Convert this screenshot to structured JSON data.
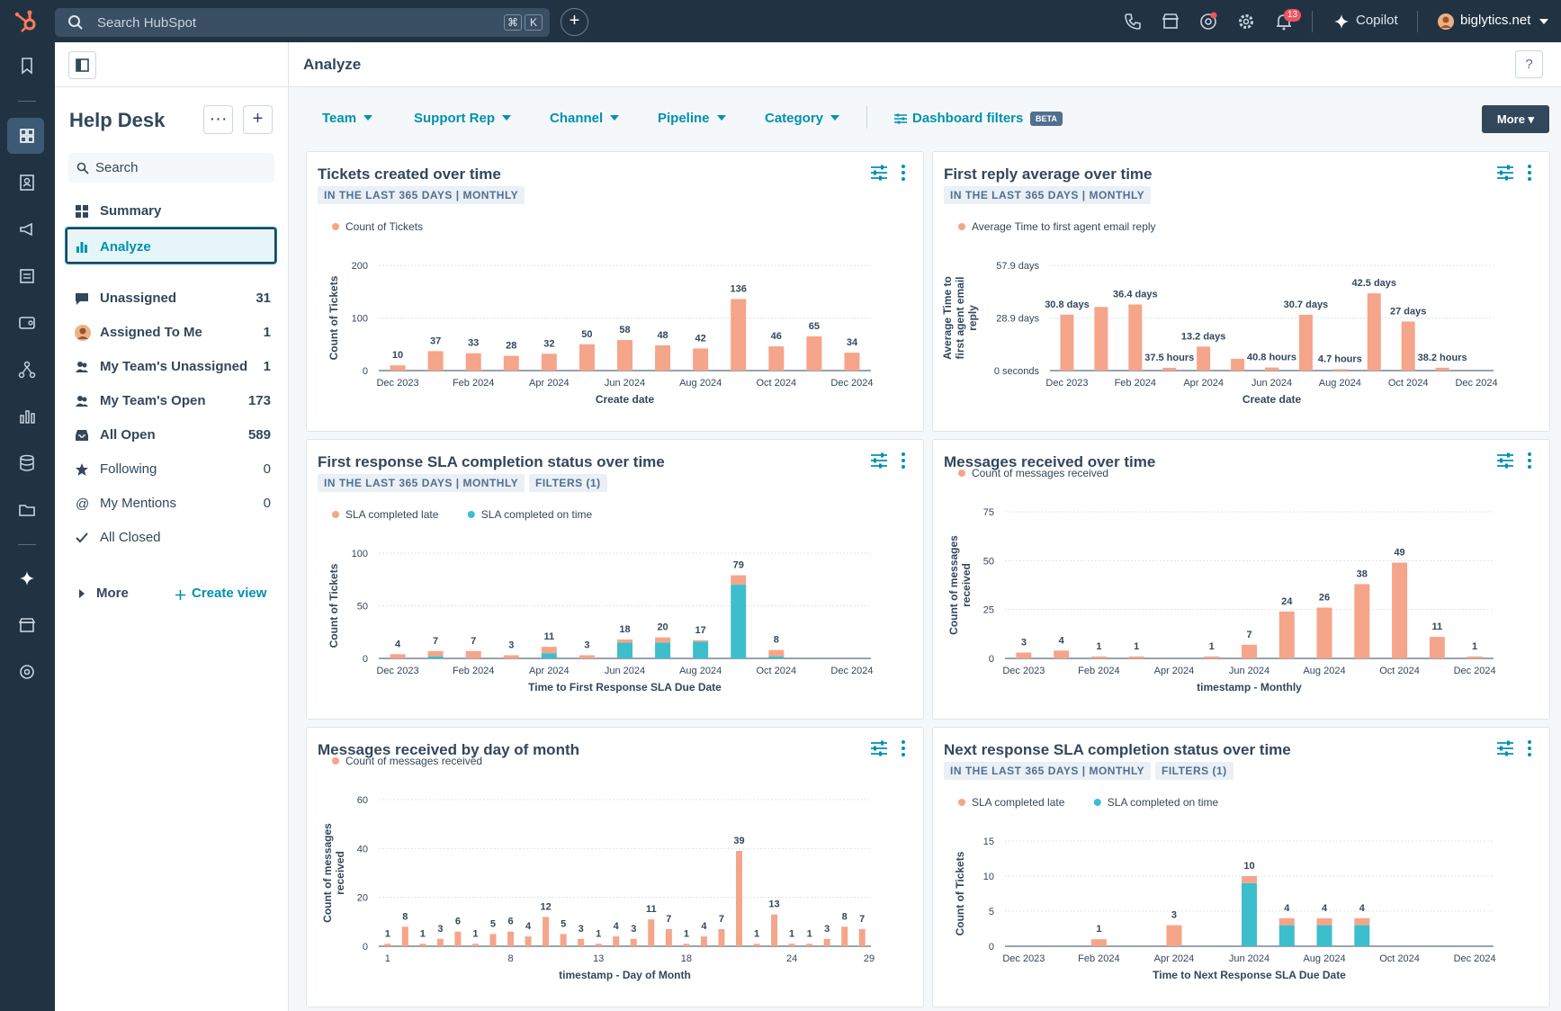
{
  "topbar": {
    "search_placeholder": "Search HubSpot",
    "kbd1": "⌘",
    "kbd2": "K",
    "add_label": "+",
    "notif_count": "13",
    "copilot_label": "Copilot",
    "account_label": "biglytics.net"
  },
  "header": {
    "title": "Analyze",
    "help": "?"
  },
  "sidebar": {
    "title": "Help Desk",
    "more_btn": "···",
    "add_btn": "+",
    "search_label": "Search",
    "items": [
      {
        "label": "Summary",
        "count": ""
      },
      {
        "label": "Analyze",
        "count": ""
      },
      {
        "label": "Unassigned",
        "count": "31"
      },
      {
        "label": "Assigned To Me",
        "count": "1"
      },
      {
        "label": "My Team's Unassigned",
        "count": "1"
      },
      {
        "label": "My Team's Open",
        "count": "173"
      },
      {
        "label": "All Open",
        "count": "589"
      },
      {
        "label": "Following",
        "count": "0"
      },
      {
        "label": "My Mentions",
        "count": "0"
      },
      {
        "label": "All Closed",
        "count": ""
      }
    ],
    "more_label": "More",
    "create_view": "Create view"
  },
  "filters": {
    "items": [
      "Team",
      "Support Rep",
      "Channel",
      "Pipeline",
      "Category"
    ],
    "dashboard_filters": "Dashboard filters",
    "beta": "BETA",
    "more": "More ▾"
  },
  "chart_data": [
    {
      "type": "bar",
      "title": "Tickets created over time",
      "tags": [
        "IN THE LAST 365 DAYS | MONTHLY"
      ],
      "legend": [
        "Count of Tickets"
      ],
      "xlabel": "Create date",
      "ylabel": "Count of Tickets",
      "ylim": [
        0,
        200
      ],
      "yticks": [
        "0",
        "100",
        "200"
      ],
      "xticks": [
        "Dec 2023",
        "Feb 2024",
        "Apr 2024",
        "Jun 2024",
        "Aug 2024",
        "Oct 2024",
        "Dec 2024"
      ],
      "categories": [
        "Dec 2023",
        "Jan 2024",
        "Feb 2024",
        "Mar 2024",
        "Apr 2024",
        "May 2024",
        "Jun 2024",
        "Jul 2024",
        "Aug 2024",
        "Sep 2024",
        "Oct 2024",
        "Nov 2024",
        "Dec 2024"
      ],
      "series": [
        {
          "values": [
            10,
            37,
            33,
            28,
            32,
            50,
            58,
            48,
            42,
            136,
            46,
            65,
            34
          ]
        }
      ],
      "labels": [
        "10",
        "37",
        "33",
        "28",
        "32",
        "50",
        "58",
        "48",
        "42",
        "136",
        "46",
        "65",
        "34"
      ]
    },
    {
      "type": "bar",
      "title": "First reply average over time",
      "tags": [
        "IN THE LAST 365 DAYS | MONTHLY"
      ],
      "legend": [
        "Average Time to first agent email reply"
      ],
      "xlabel": "Create date",
      "ylabel": "Average Time to first agent email reply",
      "ylim": [
        0,
        57.9
      ],
      "yticks": [
        "0 seconds",
        "28.9 days",
        "57.9 days"
      ],
      "xticks": [
        "Dec 2023",
        "Feb 2024",
        "Apr 2024",
        "Jun 2024",
        "Aug 2024",
        "Oct 2024",
        "Dec 2024"
      ],
      "categories": [
        "Dec 2023",
        "Jan 2024",
        "Feb 2024",
        "Mar 2024",
        "Apr 2024",
        "May 2024",
        "Jun 2024",
        "Jul 2024",
        "Aug 2024",
        "Sep 2024",
        "Oct 2024",
        "Nov 2024",
        "Dec 2024"
      ],
      "series": [
        {
          "values": [
            30.8,
            35,
            36.4,
            1.56,
            13.2,
            6.5,
            1.7,
            30.7,
            0.2,
            42.5,
            27,
            1.6,
            null
          ]
        }
      ],
      "labels": [
        "30.8 days",
        "",
        "36.4 days",
        "37.5 hours",
        "13.2 days",
        "",
        "40.8 hours",
        "30.7 days",
        "4.7 hours",
        "42.5 days",
        "27 days",
        "38.2 hours",
        ""
      ]
    },
    {
      "type": "bar",
      "title": "First response SLA completion status over time",
      "tags": [
        "IN THE LAST 365 DAYS | MONTHLY",
        "FILTERS (1)"
      ],
      "legend": [
        "SLA completed late",
        "SLA completed on time"
      ],
      "xlabel": "Time to First Response SLA Due Date",
      "ylabel": "Count of Tickets",
      "ylim": [
        0,
        100
      ],
      "yticks": [
        "0",
        "50",
        "100"
      ],
      "xticks": [
        "Dec 2023",
        "Feb 2024",
        "Apr 2024",
        "Jun 2024",
        "Aug 2024",
        "Oct 2024",
        "Dec 2024"
      ],
      "categories": [
        "Dec 2023",
        "Jan 2024",
        "Feb 2024",
        "Mar 2024",
        "Apr 2024",
        "May 2024",
        "Jun 2024",
        "Jul 2024",
        "Aug 2024",
        "Sep 2024",
        "Oct 2024",
        "Nov 2024",
        "Dec 2024"
      ],
      "series": [
        {
          "name": "SLA completed on time",
          "values": [
            0,
            2,
            0,
            0,
            5,
            0,
            15,
            15,
            16,
            70,
            2,
            0,
            0
          ]
        },
        {
          "name": "SLA completed late",
          "values": [
            4,
            5,
            7,
            3,
            6,
            3,
            3,
            5,
            1,
            9,
            6,
            0,
            0
          ]
        }
      ],
      "labels": [
        "4",
        "7",
        "7",
        "3",
        "11",
        "3",
        "18",
        "20",
        "17",
        "79",
        "8",
        "",
        ""
      ]
    },
    {
      "type": "bar",
      "title": "Messages received over time",
      "tags": [],
      "legend": [
        "Count of messages received"
      ],
      "xlabel": "timestamp - Monthly",
      "ylabel": "Count of messages received",
      "ylim": [
        0,
        75
      ],
      "yticks": [
        "0",
        "25",
        "50",
        "75"
      ],
      "xticks": [
        "Dec 2023",
        "Feb 2024",
        "Apr 2024",
        "Jun 2024",
        "Aug 2024",
        "Oct 2024",
        "Dec 2024"
      ],
      "categories": [
        "Dec 2023",
        "Jan 2024",
        "Feb 2024",
        "Mar 2024",
        "Apr 2024",
        "May 2024",
        "Jun 2024",
        "Jul 2024",
        "Aug 2024",
        "Sep 2024",
        "Oct 2024",
        "Nov 2024",
        "Dec 2024"
      ],
      "series": [
        {
          "values": [
            3,
            4,
            1,
            1,
            0,
            1,
            7,
            24,
            26,
            38,
            49,
            11,
            1
          ]
        }
      ],
      "labels": [
        "3",
        "4",
        "1",
        "1",
        "",
        "1",
        "7",
        "24",
        "26",
        "38",
        "49",
        "11",
        "1"
      ]
    },
    {
      "type": "bar",
      "title": "Messages received by day of month",
      "tags": [],
      "legend": [
        "Count of messages received"
      ],
      "xlabel": "timestamp - Day of Month",
      "ylabel": "Count of messages received",
      "ylim": [
        0,
        60
      ],
      "yticks": [
        "0",
        "20",
        "40",
        "60"
      ],
      "xticks": [
        "1",
        "8",
        "13",
        "18",
        "24",
        "29"
      ],
      "categories": [
        "1",
        "2",
        "3",
        "4",
        "5",
        "6",
        "7",
        "8",
        "9",
        "10",
        "11",
        "12",
        "13",
        "14",
        "15",
        "16",
        "17",
        "18",
        "19",
        "20",
        "21",
        "22",
        "23",
        "24",
        "25",
        "26",
        "27",
        "28"
      ],
      "series": [
        {
          "values": [
            1,
            8,
            1,
            3,
            6,
            1,
            5,
            6,
            4,
            12,
            5,
            3,
            1,
            4,
            3,
            11,
            7,
            1,
            4,
            7,
            39,
            1,
            13,
            1,
            1,
            3,
            8,
            7
          ]
        }
      ],
      "labels": [
        "1",
        "8",
        "1",
        "3",
        "6",
        "1",
        "5",
        "6",
        "4",
        "12",
        "5",
        "3",
        "1",
        "4",
        "3",
        "11",
        "7",
        "1",
        "4",
        "7",
        "39",
        "1",
        "13",
        "1",
        "1",
        "3",
        "8",
        "7"
      ]
    },
    {
      "type": "bar",
      "title": "Next response SLA completion status over time",
      "tags": [
        "IN THE LAST 365 DAYS | MONTHLY",
        "FILTERS (1)"
      ],
      "legend": [
        "SLA completed late",
        "SLA completed on time"
      ],
      "xlabel": "Time to Next Response SLA Due Date",
      "ylabel": "Count of Tickets",
      "ylim": [
        0,
        15
      ],
      "yticks": [
        "0",
        "5",
        "10",
        "15"
      ],
      "xticks": [
        "Dec 2023",
        "Feb 2024",
        "Apr 2024",
        "Jun 2024",
        "Aug 2024",
        "Oct 2024",
        "Dec 2024"
      ],
      "categories": [
        "Dec 2023",
        "Jan 2024",
        "Feb 2024",
        "Mar 2024",
        "Apr 2024",
        "May 2024",
        "Jun 2024",
        "Jul 2024",
        "Aug 2024",
        "Sep 2024",
        "Oct 2024",
        "Nov 2024",
        "Dec 2024"
      ],
      "series": [
        {
          "name": "SLA completed on time",
          "values": [
            0,
            0,
            0,
            0,
            0,
            0,
            9,
            3,
            3,
            3,
            0,
            0,
            0
          ]
        },
        {
          "name": "SLA completed late",
          "values": [
            0,
            0,
            1,
            0,
            3,
            0,
            1,
            1,
            1,
            1,
            0,
            0,
            0
          ]
        }
      ],
      "labels": [
        "",
        "",
        "1",
        "",
        "3",
        "",
        "10",
        "4",
        "4",
        "4",
        "",
        "",
        ""
      ]
    }
  ],
  "colors": {
    "late": "#f5a58a",
    "ontime": "#3dbecc",
    "dark": "#213343",
    "link": "#0091ae"
  }
}
